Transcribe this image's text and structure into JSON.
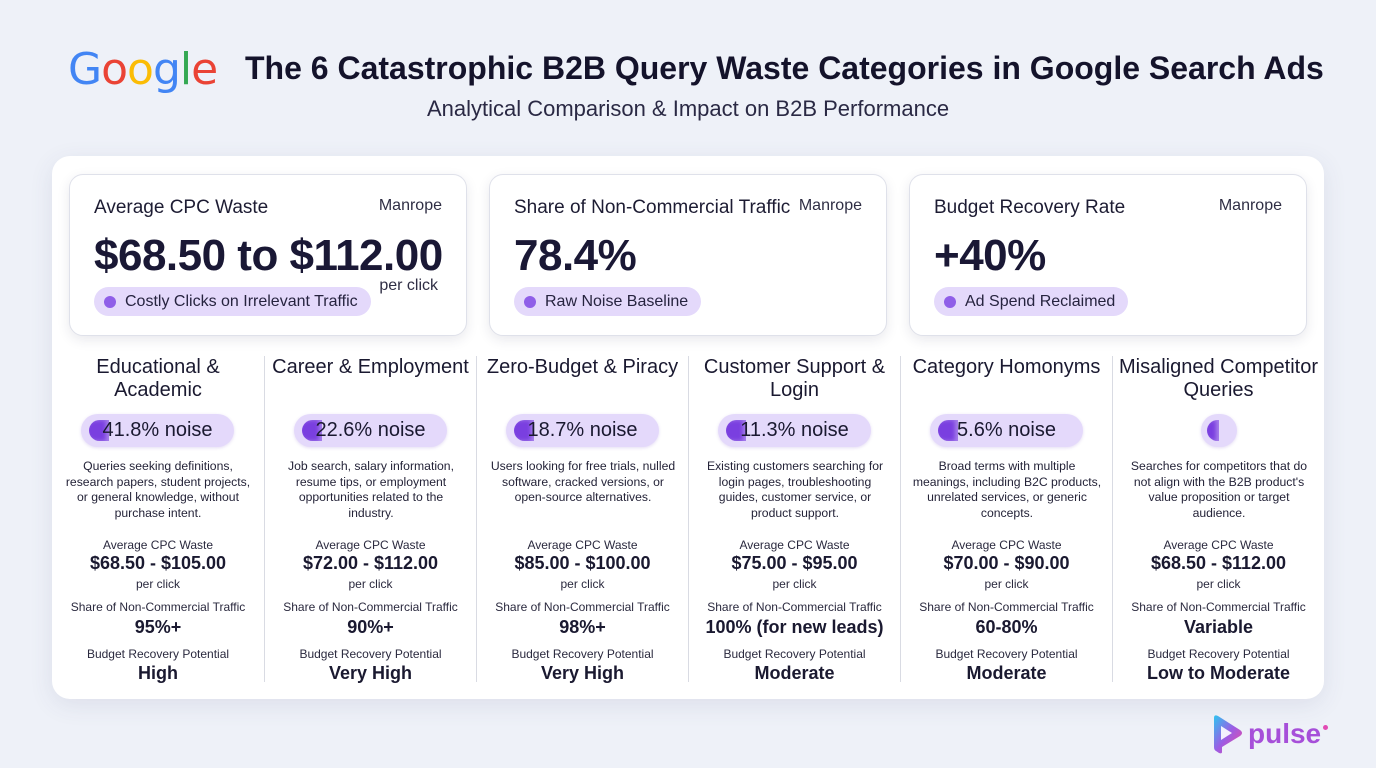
{
  "header": {
    "logo_letters": [
      {
        "char": "G",
        "color": "#4285F4"
      },
      {
        "char": "o",
        "color": "#EA4335"
      },
      {
        "char": "o",
        "color": "#FBBC05"
      },
      {
        "char": "g",
        "color": "#4285F4"
      },
      {
        "char": "l",
        "color": "#34A853"
      },
      {
        "char": "e",
        "color": "#EA4335"
      }
    ],
    "title": "The 6 Catastrophic B2B Query Waste Categories in Google Search Ads",
    "subtitle": "Analytical Comparison & Impact on B2B Performance"
  },
  "kpis": [
    {
      "title": "Average CPC Waste",
      "font_note": "Manrope",
      "value": "$68.50 to $112.00",
      "unit": "per click",
      "pill": "Costly Clicks on Irrelevant Traffic"
    },
    {
      "title": "Share of Non-Commercial Traffic",
      "font_note": "Manrope",
      "value": "78.4%",
      "unit": "",
      "pill": "Raw Noise Baseline"
    },
    {
      "title": "Budget Recovery Rate",
      "font_note": "Manrope",
      "value": "+40%",
      "unit": "",
      "pill": "Ad Spend Reclaimed"
    }
  ],
  "labels": {
    "cpc": "Average CPC Waste",
    "per_click": "per click",
    "share": "Share of Non-Commercial Traffic",
    "recovery": "Budget Recovery Potential"
  },
  "categories": [
    {
      "title": "Educational & Academic",
      "noise": "41.8% noise",
      "description": "Queries seeking definitions, research papers, student projects, or general knowledge, without purchase intent.",
      "cpc": "$68.50 - $105.00",
      "share": "95%+",
      "recovery": "High"
    },
    {
      "title": "Career & Employment",
      "noise": "22.6% noise",
      "description": "Job search, salary information, resume tips, or employment opportunities related to the industry.",
      "cpc": "$72.00 - $112.00",
      "share": "90%+",
      "recovery": "Very High"
    },
    {
      "title": "Zero-Budget & Piracy",
      "noise": "18.7% noise",
      "description": "Users looking for free trials, nulled software, cracked versions, or open-source alternatives.",
      "cpc": "$85.00 - $100.00",
      "share": "98%+",
      "recovery": "Very High"
    },
    {
      "title": "Customer Support & Login",
      "noise": "11.3% noise",
      "description": "Existing customers searching for login pages, troubleshooting guides, customer service, or product support.",
      "cpc": "$75.00 - $95.00",
      "share": "100% (for new leads)",
      "recovery": "Moderate"
    },
    {
      "title": "Category Homonyms",
      "noise": "5.6% noise",
      "description": "Broad terms with multiple meanings, including B2C products, unrelated services, or generic concepts.",
      "cpc": "$70.00 - $90.00",
      "share": "60-80%",
      "recovery": "Moderate"
    },
    {
      "title": "Misaligned Competitor Queries",
      "noise": "",
      "description": "Searches for competitors that do not align with the B2B product's value proposition or target audience.",
      "cpc": "$68.50 - $112.00",
      "share": "Variable",
      "recovery": "Low to Moderate"
    }
  ],
  "brand": {
    "name": "pulse",
    "accent": "#a64fd9",
    "pill_color": "#e4d9fb",
    "mark_color": "#7a3fe0"
  }
}
